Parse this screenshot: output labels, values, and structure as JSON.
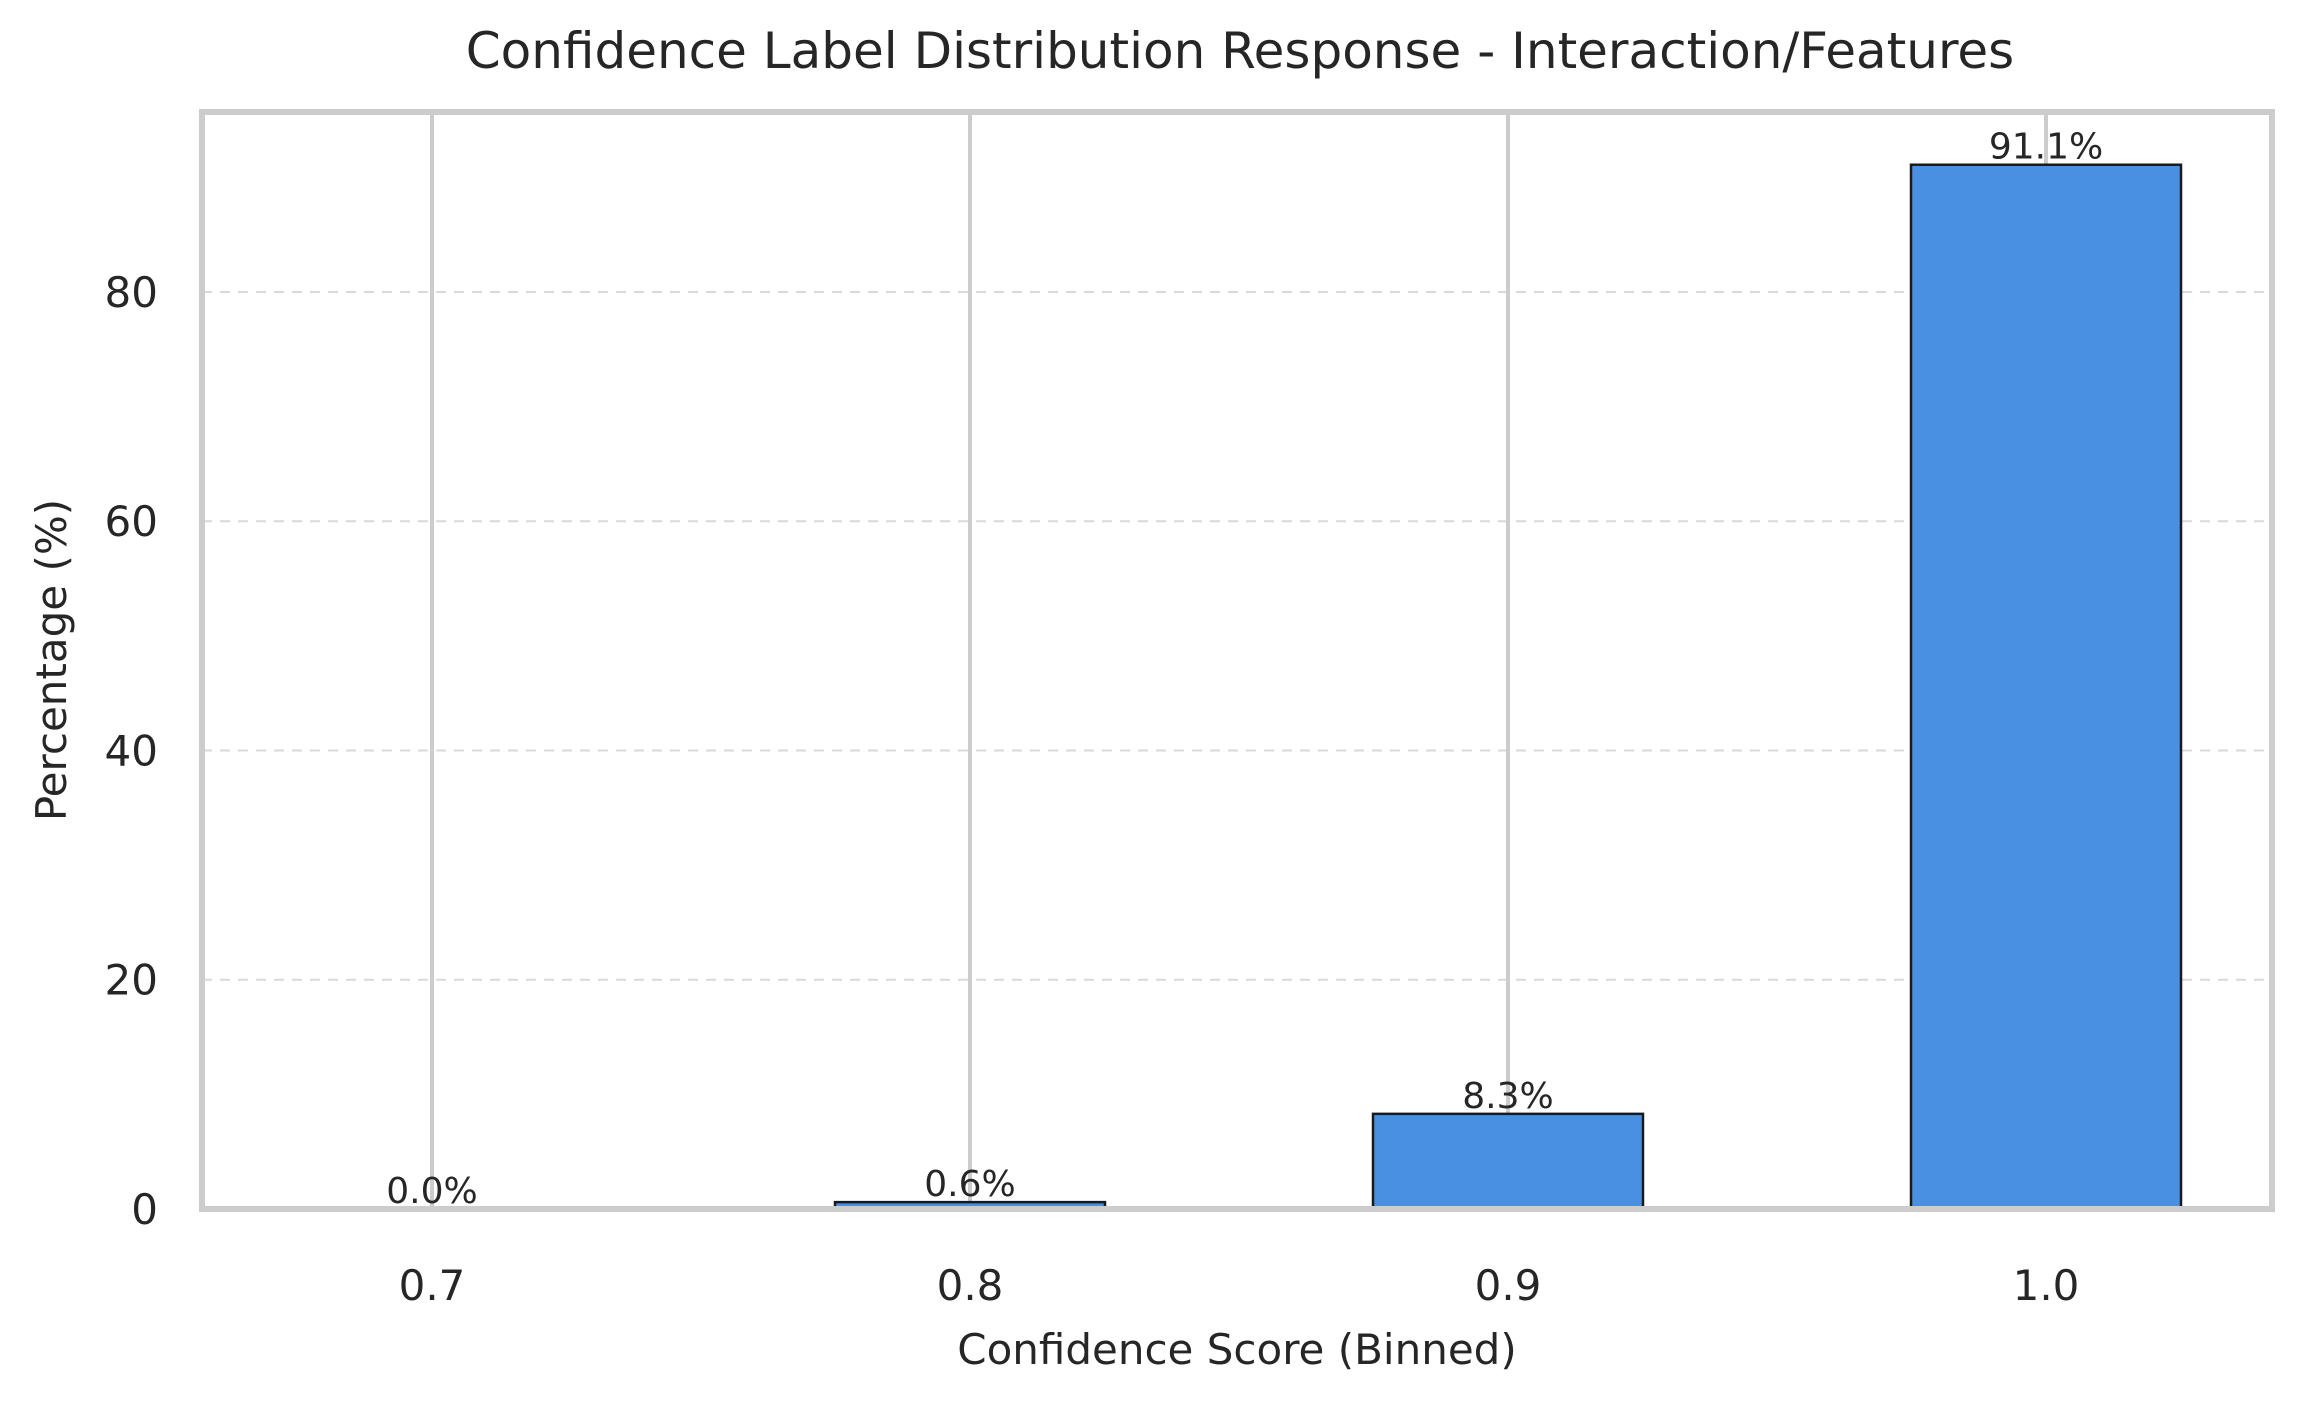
{
  "chart_data": {
    "type": "bar",
    "title": "Confidence Label Distribution Response - Interaction/Features",
    "xlabel": "Confidence Score (Binned)",
    "ylabel": "Percentage (%)",
    "categories": [
      "0.7",
      "0.8",
      "0.9",
      "1.0"
    ],
    "values": [
      0.0,
      0.6,
      8.3,
      91.1
    ],
    "data_labels": [
      "0.0%",
      "0.6%",
      "8.3%",
      "91.1%"
    ],
    "yticks": [
      0,
      20,
      40,
      60,
      80
    ],
    "ytick_labels": [
      "0",
      "20",
      "40",
      "60",
      "80"
    ],
    "ylim": [
      0,
      95.7
    ],
    "grid": true,
    "colors": {
      "bar_fill": "#4a90e2",
      "bar_edge": "#1a1a1a",
      "axes_frame": "#cccccc",
      "grid_vertical": "#cccccc",
      "grid_horizontal": "#d9d9d9",
      "text": "#262626"
    }
  }
}
